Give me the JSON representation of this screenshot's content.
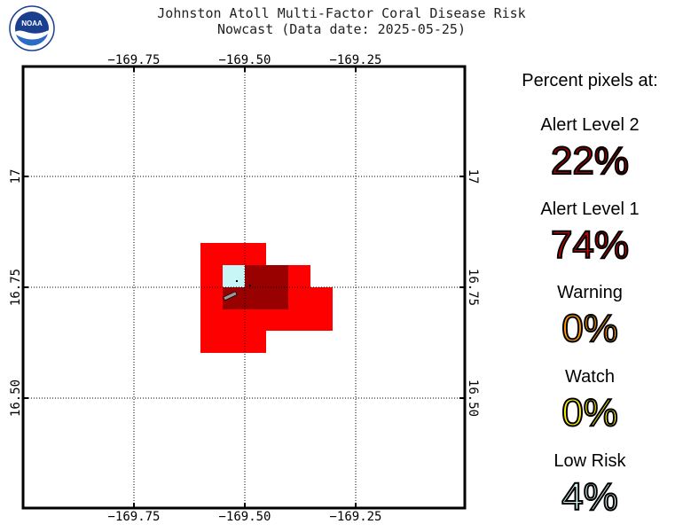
{
  "header": {
    "title_line1": "Johnston Atoll Multi-Factor Coral Disease Risk",
    "title_line2": "Nowcast (Data date: 2025-05-25)",
    "logo_text": "NOAA"
  },
  "map": {
    "x_ticks": [
      "−169.75",
      "−169.50",
      "−169.25"
    ],
    "y_ticks": [
      "17",
      "16.75",
      "16.50"
    ],
    "colors": {
      "alert_level_2": "#990000",
      "alert_level_1": "#ff0000",
      "warning": "#ff9900",
      "watch": "#ffff00",
      "low_risk": "#c8f5f5"
    }
  },
  "legend": {
    "heading": "Percent pixels at:",
    "items": [
      {
        "label": "Alert Level 2",
        "value": "22%",
        "color": "#990000"
      },
      {
        "label": "Alert Level 1",
        "value": "74%",
        "color": "#cc0000"
      },
      {
        "label": "Warning",
        "value": "0%",
        "color": "#ff9900"
      },
      {
        "label": "Watch",
        "value": "0%",
        "color": "#ffee00"
      },
      {
        "label": "Low Risk",
        "value": "4%",
        "color": "#d6f5f5"
      }
    ]
  }
}
